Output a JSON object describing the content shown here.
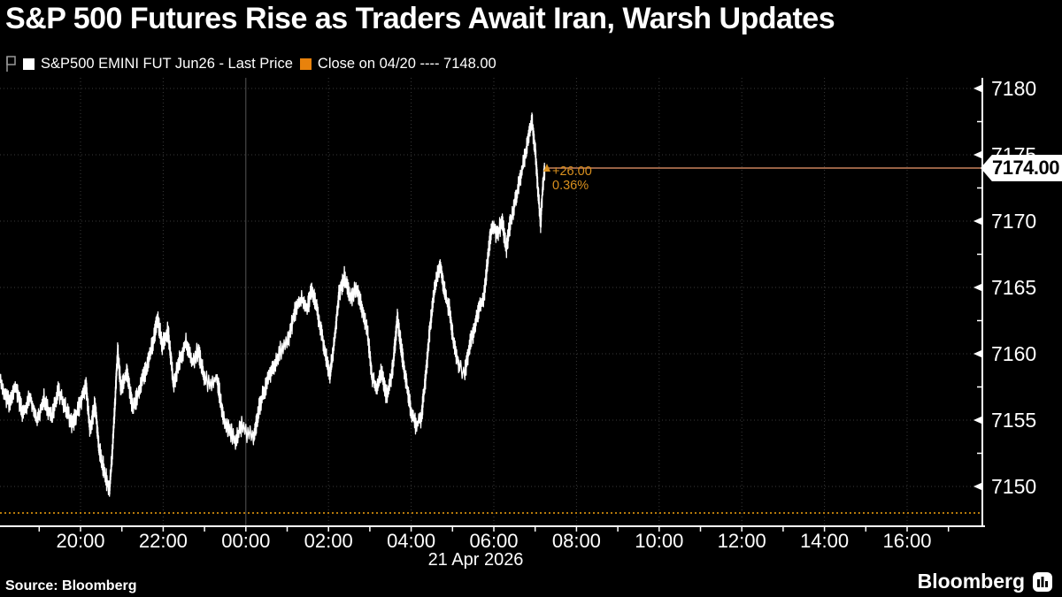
{
  "title": "S&P 500 Futures Rise as Traders Await Iran, Warsh Updates",
  "legend": {
    "series": {
      "label": "S&P500 EMINI FUT Jun26 - Last Price",
      "swatch_color": "#ffffff"
    },
    "close": {
      "label": "Close on 04/20 ---- 7148.00",
      "swatch_color": "#e8820c"
    }
  },
  "price_label": {
    "value": "7174.00"
  },
  "annotation": {
    "change": "+26.00",
    "pct": "0.36%"
  },
  "footer": {
    "source": "Source: Bloomberg",
    "brand": "Bloomberg"
  },
  "colors": {
    "background": "#000000",
    "series_line": "#ffffff",
    "close_dotted_line": "#b5790a",
    "last_price_line": "#c9825c",
    "annotation_text": "#d9901e",
    "grid": "#3a3a3a",
    "session_break": "#555555",
    "axis": "#ffffff"
  },
  "chart_data": {
    "type": "line",
    "title": "S&P 500 Futures Rise as Traders Await Iran, Warsh Updates",
    "series_name": "S&P500 EMINI FUT Jun26 - Last Price",
    "reference_line": {
      "label": "Close on 04/20",
      "value": 7148.0
    },
    "last_price": 7174.0,
    "change": 26.0,
    "change_pct": 0.36,
    "y_axis": {
      "min": 7147,
      "max": 7181,
      "major_ticks": [
        7150,
        7155,
        7160,
        7165,
        7170,
        7175,
        7180
      ],
      "minor_step": 2.5
    },
    "x_axis": {
      "date": "21 Apr 2026",
      "tick_labels": [
        "20:00",
        "22:00",
        "00:00",
        "02:00",
        "04:00",
        "06:00",
        "08:00",
        "10:00",
        "12:00",
        "14:00",
        "16:00"
      ],
      "session_break": "00:00",
      "grid": true,
      "legend_position": "top"
    },
    "price_path": [
      [
        "18:03",
        7157.8
      ],
      [
        "18:16",
        7156.3
      ],
      [
        "18:26",
        7157.6
      ],
      [
        "18:36",
        7155.4
      ],
      [
        "18:47",
        7156.8
      ],
      [
        "18:57",
        7154.9
      ],
      [
        "19:07",
        7156.6
      ],
      [
        "19:18",
        7155.1
      ],
      [
        "19:28",
        7157.2
      ],
      [
        "19:38",
        7156.0
      ],
      [
        "19:48",
        7154.6
      ],
      [
        "19:59",
        7156.2
      ],
      [
        "20:08",
        7157.6
      ],
      [
        "20:14",
        7154.2
      ],
      [
        "20:21",
        7156.3
      ],
      [
        "20:27",
        7152.8
      ],
      [
        "20:33",
        7151.5
      ],
      [
        "20:39",
        7150.2
      ],
      [
        "20:42",
        7149.7
      ],
      [
        "20:46",
        7152.5
      ],
      [
        "20:50",
        7156.2
      ],
      [
        "20:54",
        7160.3
      ],
      [
        "20:59",
        7157.2
      ],
      [
        "21:07",
        7158.7
      ],
      [
        "21:16",
        7155.8
      ],
      [
        "21:25",
        7157.3
      ],
      [
        "21:34",
        7158.6
      ],
      [
        "21:43",
        7160.4
      ],
      [
        "21:52",
        7162.6
      ],
      [
        "21:59",
        7160.6
      ],
      [
        "22:07",
        7161.8
      ],
      [
        "22:15",
        7157.6
      ],
      [
        "22:24",
        7159.6
      ],
      [
        "22:33",
        7160.8
      ],
      [
        "22:42",
        7159.4
      ],
      [
        "22:51",
        7160.2
      ],
      [
        "23:00",
        7158.1
      ],
      [
        "23:09",
        7157.6
      ],
      [
        "23:18",
        7158.3
      ],
      [
        "23:27",
        7155.2
      ],
      [
        "23:36",
        7154.3
      ],
      [
        "23:45",
        7153.4
      ],
      [
        "23:54",
        7154.6
      ],
      [
        "00:03",
        7154.0
      ],
      [
        "00:11",
        7153.6
      ],
      [
        "00:20",
        7156.1
      ],
      [
        "00:30",
        7157.7
      ],
      [
        "00:40",
        7159.1
      ],
      [
        "00:50",
        7160.2
      ],
      [
        "01:01",
        7161.0
      ],
      [
        "01:11",
        7163.1
      ],
      [
        "01:21",
        7164.2
      ],
      [
        "01:29",
        7163.2
      ],
      [
        "01:35",
        7164.9
      ],
      [
        "01:43",
        7163.4
      ],
      [
        "01:51",
        7161.3
      ],
      [
        "01:57",
        7159.6
      ],
      [
        "02:02",
        7158.3
      ],
      [
        "02:09",
        7161.2
      ],
      [
        "02:15",
        7164.4
      ],
      [
        "02:23",
        7165.8
      ],
      [
        "02:32",
        7164.1
      ],
      [
        "02:41",
        7164.9
      ],
      [
        "02:48",
        7163.6
      ],
      [
        "02:56",
        7161.9
      ],
      [
        "03:03",
        7158.4
      ],
      [
        "03:10",
        7157.2
      ],
      [
        "03:17",
        7158.8
      ],
      [
        "03:24",
        7156.8
      ],
      [
        "03:32",
        7158.4
      ],
      [
        "03:40",
        7162.6
      ],
      [
        "03:46",
        7160.3
      ],
      [
        "03:53",
        7157.8
      ],
      [
        "03:59",
        7155.9
      ],
      [
        "04:07",
        7154.5
      ],
      [
        "04:15",
        7155.3
      ],
      [
        "04:21",
        7158.2
      ],
      [
        "04:27",
        7161.8
      ],
      [
        "04:34",
        7164.8
      ],
      [
        "04:42",
        7166.8
      ],
      [
        "04:49",
        7164.6
      ],
      [
        "04:56",
        7163.2
      ],
      [
        "05:02",
        7160.6
      ],
      [
        "05:10",
        7159.0
      ],
      [
        "05:18",
        7158.7
      ],
      [
        "05:25",
        7160.6
      ],
      [
        "05:33",
        7162.1
      ],
      [
        "05:39",
        7163.6
      ],
      [
        "05:46",
        7164.4
      ],
      [
        "05:51",
        7167.0
      ],
      [
        "05:57",
        7169.7
      ],
      [
        "06:05",
        7168.9
      ],
      [
        "06:12",
        7170.1
      ],
      [
        "06:18",
        7167.9
      ],
      [
        "06:24",
        7169.9
      ],
      [
        "06:31",
        7171.4
      ],
      [
        "06:37",
        7172.9
      ],
      [
        "06:44",
        7174.6
      ],
      [
        "06:50",
        7176.2
      ],
      [
        "06:55",
        7177.6
      ],
      [
        "07:00",
        7175.4
      ],
      [
        "07:04",
        7172.3
      ],
      [
        "07:08",
        7169.9
      ],
      [
        "07:11",
        7172.5
      ],
      [
        "07:14",
        7174.0
      ]
    ]
  }
}
